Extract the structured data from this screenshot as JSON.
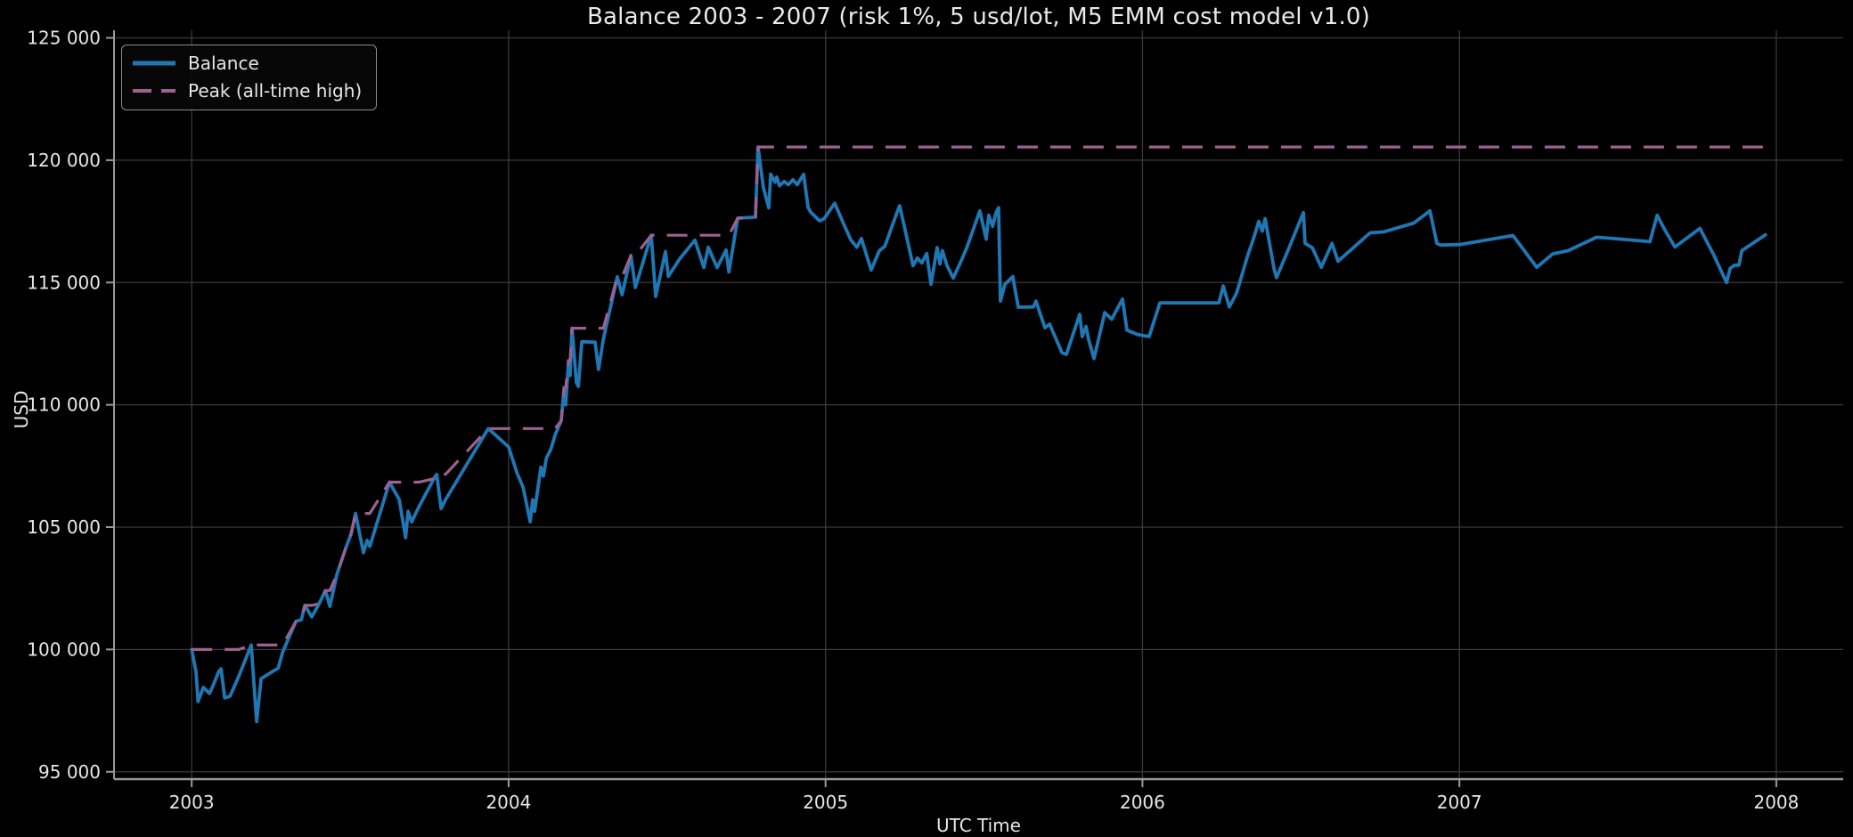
{
  "figure": {
    "background_color": "#000000",
    "text_color": "#e6e6e6",
    "grid_color": "#3a3a3a",
    "spine_color": "#9a9a9a"
  },
  "chart_data": {
    "type": "line",
    "title": "Balance 2003 - 2007 (risk 1%, 5 usd/lot, M5 EMM cost model v1.0)",
    "xlabel": "UTC Time",
    "ylabel": "USD",
    "xlim": [
      2002.755,
      2008.211
    ],
    "ylim": [
      94700,
      125310
    ],
    "grid": true,
    "legend_position": "upper left",
    "x_ticks": [
      {
        "v": 2003,
        "label": "2003"
      },
      {
        "v": 2004,
        "label": "2004"
      },
      {
        "v": 2005,
        "label": "2005"
      },
      {
        "v": 2006,
        "label": "2006"
      },
      {
        "v": 2007,
        "label": "2007"
      },
      {
        "v": 2008,
        "label": "2008"
      }
    ],
    "y_ticks": [
      {
        "v": 95000,
        "label": "95 000"
      },
      {
        "v": 100000,
        "label": "100 000"
      },
      {
        "v": 105000,
        "label": "105 000"
      },
      {
        "v": 110000,
        "label": "110 000"
      },
      {
        "v": 115000,
        "label": "115 000"
      },
      {
        "v": 120000,
        "label": "120 000"
      },
      {
        "v": 125000,
        "label": "125 000"
      }
    ],
    "series": [
      {
        "name": "Balance",
        "color": "#1f77b4",
        "style": "solid",
        "line_width": 3.8,
        "points": [
          [
            2003.0,
            100000
          ],
          [
            2003.014,
            99060
          ],
          [
            2003.02,
            97870
          ],
          [
            2003.037,
            98450
          ],
          [
            2003.056,
            98200
          ],
          [
            2003.07,
            98600
          ],
          [
            2003.084,
            99060
          ],
          [
            2003.093,
            99210
          ],
          [
            2003.104,
            98020
          ],
          [
            2003.121,
            98090
          ],
          [
            2003.149,
            98920
          ],
          [
            2003.188,
            100180
          ],
          [
            2003.205,
            97050
          ],
          [
            2003.219,
            98810
          ],
          [
            2003.273,
            99240
          ],
          [
            2003.287,
            99890
          ],
          [
            2003.329,
            101150
          ],
          [
            2003.346,
            101220
          ],
          [
            2003.357,
            101800
          ],
          [
            2003.379,
            101330
          ],
          [
            2003.402,
            101870
          ],
          [
            2003.422,
            102410
          ],
          [
            2003.436,
            101760
          ],
          [
            2003.458,
            103060
          ],
          [
            2003.486,
            104140
          ],
          [
            2003.503,
            104720
          ],
          [
            2003.517,
            105560
          ],
          [
            2003.542,
            103960
          ],
          [
            2003.554,
            104460
          ],
          [
            2003.562,
            104210
          ],
          [
            2003.624,
            106840
          ],
          [
            2003.655,
            106120
          ],
          [
            2003.675,
            104570
          ],
          [
            2003.683,
            105650
          ],
          [
            2003.694,
            105220
          ],
          [
            2003.717,
            105830
          ],
          [
            2003.764,
            106980
          ],
          [
            2003.773,
            107160
          ],
          [
            2003.787,
            105760
          ],
          [
            2003.801,
            106120
          ],
          [
            2003.936,
            109030
          ],
          [
            2004.0,
            108280
          ],
          [
            2004.027,
            107200
          ],
          [
            2004.046,
            106620
          ],
          [
            2004.068,
            105220
          ],
          [
            2004.076,
            106120
          ],
          [
            2004.082,
            105650
          ],
          [
            2004.102,
            107450
          ],
          [
            2004.11,
            107090
          ],
          [
            2004.119,
            107810
          ],
          [
            2004.133,
            108170
          ],
          [
            2004.147,
            108780
          ],
          [
            2004.166,
            109350
          ],
          [
            2004.175,
            110700
          ],
          [
            2004.18,
            110000
          ],
          [
            2004.189,
            111800
          ],
          [
            2004.194,
            111200
          ],
          [
            2004.2,
            113130
          ],
          [
            2004.214,
            110900
          ],
          [
            2004.22,
            110750
          ],
          [
            2004.231,
            112580
          ],
          [
            2004.273,
            112560
          ],
          [
            2004.284,
            111450
          ],
          [
            2004.299,
            112690
          ],
          [
            2004.343,
            115230
          ],
          [
            2004.358,
            114500
          ],
          [
            2004.386,
            116100
          ],
          [
            2004.4,
            114800
          ],
          [
            2004.45,
            116930
          ],
          [
            2004.464,
            114430
          ],
          [
            2004.495,
            116260
          ],
          [
            2004.504,
            115250
          ],
          [
            2004.54,
            115970
          ],
          [
            2004.588,
            116730
          ],
          [
            2004.616,
            115610
          ],
          [
            2004.63,
            116440
          ],
          [
            2004.658,
            115610
          ],
          [
            2004.686,
            116330
          ],
          [
            2004.695,
            115430
          ],
          [
            2004.723,
            117630
          ],
          [
            2004.779,
            117670
          ],
          [
            2004.787,
            120540
          ],
          [
            2004.804,
            118880
          ],
          [
            2004.821,
            118050
          ],
          [
            2004.827,
            119430
          ],
          [
            2004.841,
            119100
          ],
          [
            2004.846,
            119310
          ],
          [
            2004.855,
            118950
          ],
          [
            2004.869,
            119130
          ],
          [
            2004.883,
            119000
          ],
          [
            2004.897,
            119200
          ],
          [
            2004.911,
            119000
          ],
          [
            2004.931,
            119420
          ],
          [
            2004.945,
            118060
          ],
          [
            2004.953,
            117880
          ],
          [
            2004.981,
            117520
          ],
          [
            2004.995,
            117600
          ],
          [
            2005.029,
            118240
          ],
          [
            2005.057,
            117400
          ],
          [
            2005.08,
            116740
          ],
          [
            2005.099,
            116440
          ],
          [
            2005.113,
            116800
          ],
          [
            2005.144,
            115510
          ],
          [
            2005.17,
            116300
          ],
          [
            2005.187,
            116480
          ],
          [
            2005.226,
            117880
          ],
          [
            2005.234,
            118140
          ],
          [
            2005.276,
            115690
          ],
          [
            2005.29,
            116000
          ],
          [
            2005.304,
            115800
          ],
          [
            2005.319,
            116180
          ],
          [
            2005.333,
            114930
          ],
          [
            2005.352,
            116430
          ],
          [
            2005.361,
            115760
          ],
          [
            2005.369,
            116300
          ],
          [
            2005.383,
            115700
          ],
          [
            2005.403,
            115180
          ],
          [
            2005.425,
            115800
          ],
          [
            2005.445,
            116400
          ],
          [
            2005.487,
            117930
          ],
          [
            2005.507,
            116770
          ],
          [
            2005.515,
            117750
          ],
          [
            2005.527,
            117300
          ],
          [
            2005.538,
            117860
          ],
          [
            2005.546,
            118060
          ],
          [
            2005.552,
            114240
          ],
          [
            2005.566,
            114930
          ],
          [
            2005.591,
            115240
          ],
          [
            2005.608,
            113990
          ],
          [
            2005.656,
            114000
          ],
          [
            2005.664,
            114240
          ],
          [
            2005.692,
            113150
          ],
          [
            2005.707,
            113300
          ],
          [
            2005.718,
            112970
          ],
          [
            2005.746,
            112130
          ],
          [
            2005.76,
            112060
          ],
          [
            2005.802,
            113700
          ],
          [
            2005.81,
            112790
          ],
          [
            2005.822,
            113200
          ],
          [
            2005.83,
            112680
          ],
          [
            2005.847,
            111890
          ],
          [
            2005.881,
            113770
          ],
          [
            2005.903,
            113500
          ],
          [
            2005.937,
            114320
          ],
          [
            2005.951,
            113050
          ],
          [
            2005.985,
            112870
          ],
          [
            2006.021,
            112790
          ],
          [
            2006.055,
            114170
          ],
          [
            2006.241,
            114170
          ],
          [
            2006.255,
            114860
          ],
          [
            2006.274,
            114000
          ],
          [
            2006.297,
            114570
          ],
          [
            2006.331,
            116060
          ],
          [
            2006.35,
            116780
          ],
          [
            2006.367,
            117500
          ],
          [
            2006.378,
            117100
          ],
          [
            2006.387,
            117610
          ],
          [
            2006.415,
            115570
          ],
          [
            2006.423,
            115200
          ],
          [
            2006.463,
            116430
          ],
          [
            2006.508,
            117860
          ],
          [
            2006.513,
            116600
          ],
          [
            2006.536,
            116420
          ],
          [
            2006.564,
            115620
          ],
          [
            2006.598,
            116600
          ],
          [
            2006.617,
            115870
          ],
          [
            2006.718,
            117030
          ],
          [
            2006.761,
            117070
          ],
          [
            2006.856,
            117430
          ],
          [
            2006.907,
            117930
          ],
          [
            2006.929,
            116600
          ],
          [
            2006.94,
            116530
          ],
          [
            2007.0,
            116550
          ],
          [
            2007.169,
            116920
          ],
          [
            2007.244,
            115620
          ],
          [
            2007.295,
            116170
          ],
          [
            2007.343,
            116300
          ],
          [
            2007.433,
            116850
          ],
          [
            2007.503,
            116780
          ],
          [
            2007.601,
            116670
          ],
          [
            2007.624,
            117750
          ],
          [
            2007.646,
            117200
          ],
          [
            2007.68,
            116450
          ],
          [
            2007.759,
            117210
          ],
          [
            2007.801,
            116170
          ],
          [
            2007.843,
            115000
          ],
          [
            2007.854,
            115570
          ],
          [
            2007.868,
            115710
          ],
          [
            2007.882,
            115710
          ],
          [
            2007.891,
            116300
          ],
          [
            2007.966,
            116950
          ]
        ]
      },
      {
        "name": "Peak (all-time high)",
        "color": "#9d6190",
        "style": "dashed",
        "line_width": 3.2,
        "derived": "running_max_of_balance",
        "all_time_high": 120540
      }
    ]
  }
}
